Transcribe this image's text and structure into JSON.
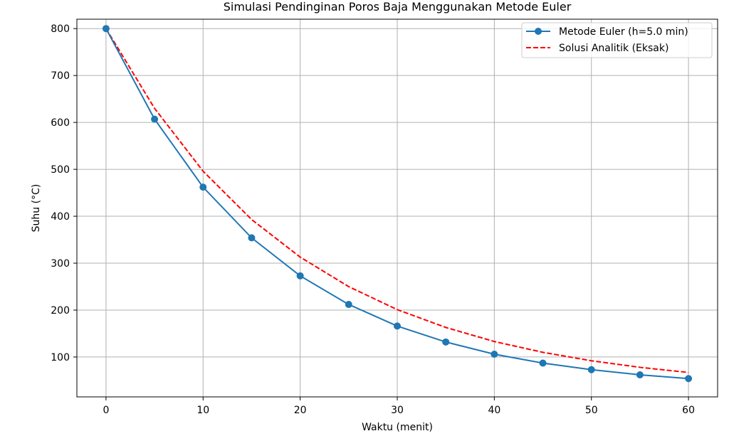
{
  "chart_data": {
    "type": "line",
    "title": "Simulasi Pendinginan Poros Baja Menggunakan Metode Euler",
    "xlabel": "Waktu (menit)",
    "ylabel": "Suhu (°C)",
    "xlim": [
      -3,
      63
    ],
    "ylim": [
      15,
      820
    ],
    "xticks": [
      0,
      10,
      20,
      30,
      40,
      50,
      60
    ],
    "yticks": [
      100,
      200,
      300,
      400,
      500,
      600,
      700,
      800
    ],
    "grid": true,
    "legend_position": "top-right",
    "series": [
      {
        "name": "Metode Euler (h=5.0 min)",
        "color": "#1f77b4",
        "style": "solid-with-markers",
        "x": [
          0,
          5,
          10,
          15,
          20,
          25,
          30,
          35,
          40,
          45,
          50,
          55,
          60
        ],
        "y": [
          800,
          607,
          462,
          354,
          273,
          212,
          166,
          132,
          106,
          87,
          73,
          62,
          54
        ]
      },
      {
        "name": "Solusi Analitik (Eksak)",
        "color": "#ff0000",
        "style": "dashed",
        "x": [
          0,
          5,
          10,
          15,
          20,
          25,
          30,
          35,
          40,
          45,
          50,
          55,
          60
        ],
        "y": [
          800,
          630,
          496,
          393,
          313,
          250,
          201,
          163,
          133,
          110,
          92,
          78,
          67
        ]
      }
    ]
  }
}
